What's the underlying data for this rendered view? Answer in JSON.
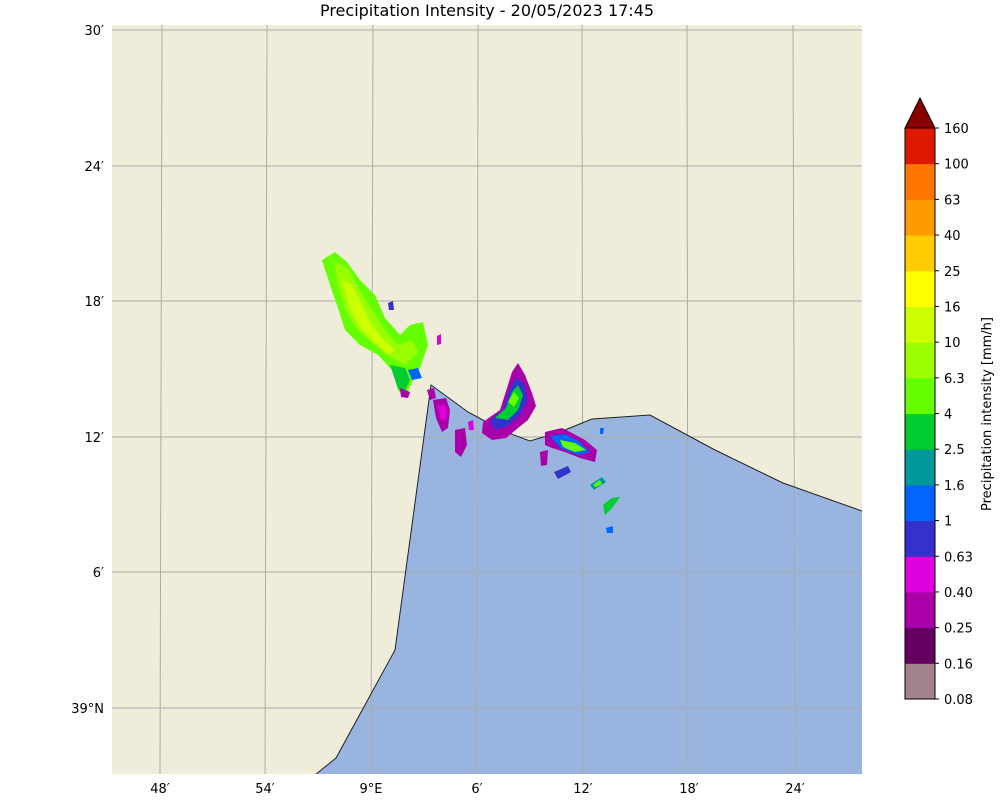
{
  "title": "Precipitation Intensity - 20/05/2023 17:45",
  "colors": {
    "land": "#efedda",
    "sea": "#99b5df",
    "grid": "#aaaaaa",
    "coast": "#222222"
  },
  "y_ticks": [
    "30′",
    "24′",
    "18′",
    "12′",
    "6′",
    "39°N"
  ],
  "x_ticks": [
    "48′",
    "54′",
    "9°E",
    "6′",
    "12′",
    "18′",
    "24′"
  ],
  "colorbar": {
    "title": "Precipitation intensity [mm/h]",
    "levels": [
      "0.08",
      "0.16",
      "0.25",
      "0.40",
      "0.63",
      "1",
      "1.6",
      "2.5",
      "4",
      "6.3",
      "10",
      "16",
      "25",
      "40",
      "63",
      "100",
      "160"
    ],
    "colors": [
      "#a0838f",
      "#640060",
      "#aa00aa",
      "#dd00dd",
      "#3333cc",
      "#0066ff",
      "#009999",
      "#00cc33",
      "#66ff00",
      "#99ff00",
      "#ccff00",
      "#ffff00",
      "#ffcc00",
      "#ff9900",
      "#ff7700",
      "#dd1a00",
      "#880000"
    ]
  }
}
